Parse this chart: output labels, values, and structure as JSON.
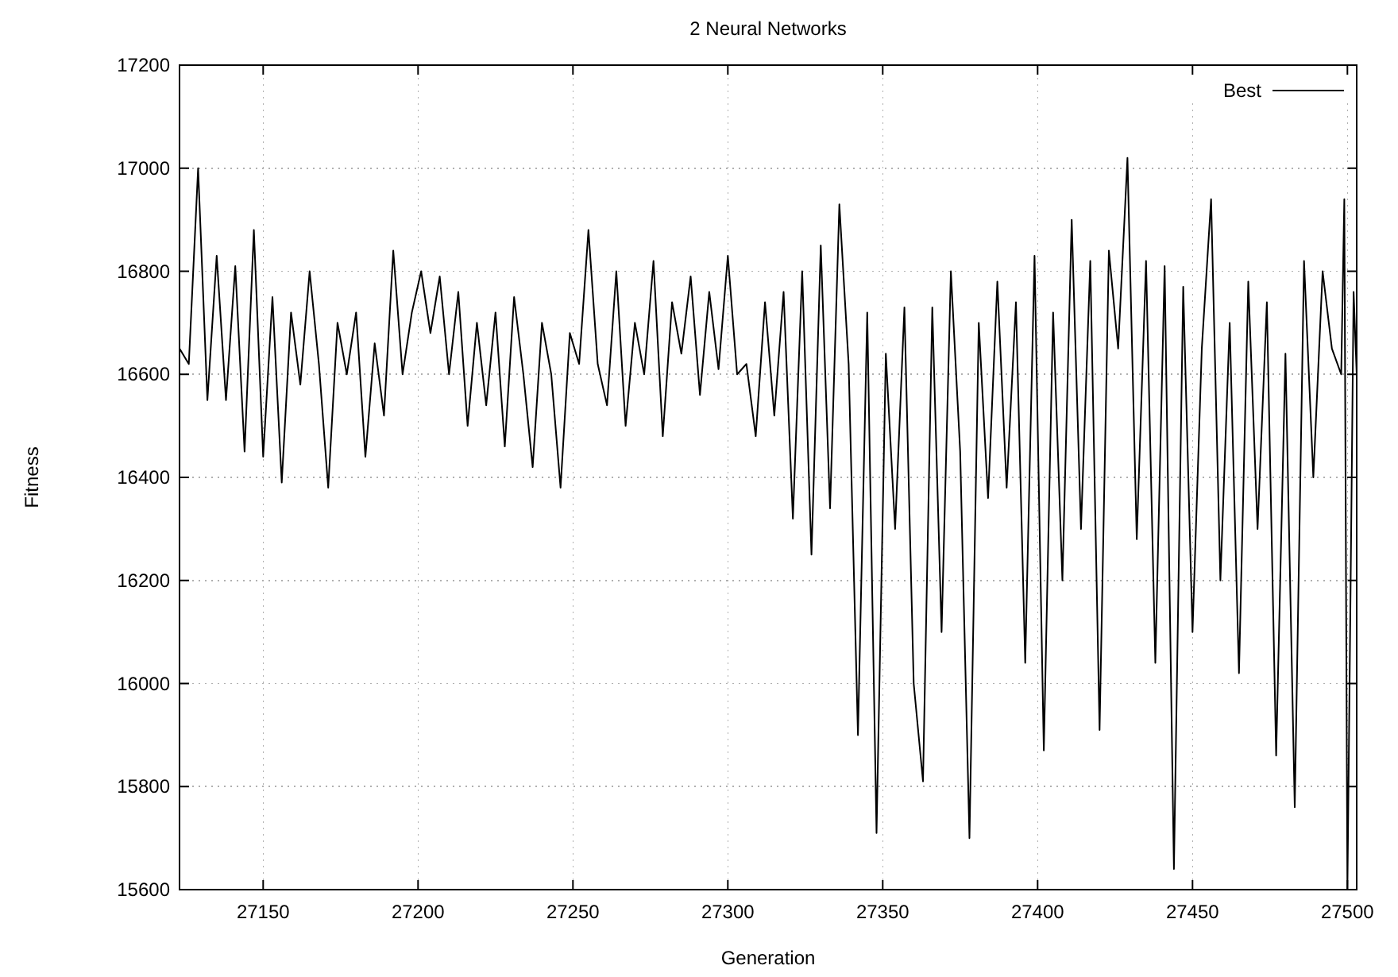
{
  "chart_data": {
    "type": "line",
    "title": "2 Neural Networks",
    "xlabel": "Generation",
    "ylabel": "Fitness",
    "xlim": [
      27123,
      27503
    ],
    "xticks": [
      27150,
      27200,
      27250,
      27300,
      27350,
      27400,
      27450,
      27500
    ],
    "ylim": [
      15600,
      17200
    ],
    "yticks": [
      15600,
      15800,
      16000,
      16200,
      16400,
      16600,
      16800,
      17000,
      17200
    ],
    "grid": true,
    "legend": "top right",
    "marker": "none",
    "line_style": "solid",
    "x": [
      27123,
      27126,
      27129,
      27132,
      27135,
      27138,
      27141,
      27144,
      27147,
      27150,
      27153,
      27156,
      27159,
      27162,
      27165,
      27168,
      27171,
      27174,
      27177,
      27180,
      27183,
      27186,
      27189,
      27192,
      27195,
      27198,
      27201,
      27204,
      27207,
      27210,
      27213,
      27216,
      27219,
      27222,
      27225,
      27228,
      27231,
      27234,
      27237,
      27240,
      27243,
      27246,
      27249,
      27252,
      27255,
      27258,
      27261,
      27264,
      27267,
      27270,
      27273,
      27276,
      27279,
      27282,
      27285,
      27288,
      27291,
      27294,
      27297,
      27300,
      27303,
      27306,
      27309,
      27312,
      27315,
      27318,
      27321,
      27324,
      27327,
      27330,
      27333,
      27336,
      27339,
      27342,
      27345,
      27348,
      27351,
      27354,
      27357,
      27360,
      27363,
      27366,
      27369,
      27372,
      27375,
      27378,
      27381,
      27384,
      27387,
      27390,
      27393,
      27396,
      27399,
      27402,
      27405,
      27408,
      27411,
      27414,
      27417,
      27420,
      27423,
      27426,
      27429,
      27432,
      27435,
      27438,
      27441,
      27444,
      27447,
      27450,
      27453,
      27456,
      27459,
      27462,
      27465,
      27468,
      27471,
      27474,
      27477,
      27480,
      27483,
      27486,
      27489,
      27492,
      27495,
      27498,
      27499,
      27500,
      27501,
      27502,
      27503
    ],
    "series": [
      {
        "name": "Best",
        "color": "#000000",
        "values": [
          16650,
          16620,
          17000,
          16550,
          16830,
          16550,
          16810,
          16450,
          16880,
          16440,
          16750,
          16390,
          16720,
          16580,
          16800,
          16620,
          16380,
          16700,
          16600,
          16720,
          16440,
          16660,
          16520,
          16840,
          16600,
          16720,
          16800,
          16680,
          16790,
          16600,
          16760,
          16500,
          16700,
          16540,
          16720,
          16460,
          16750,
          16600,
          16420,
          16700,
          16600,
          16380,
          16680,
          16620,
          16880,
          16620,
          16540,
          16800,
          16500,
          16700,
          16600,
          16820,
          16480,
          16740,
          16640,
          16790,
          16560,
          16760,
          16610,
          16830,
          16600,
          16620,
          16480,
          16740,
          16520,
          16760,
          16320,
          16800,
          16250,
          16850,
          16340,
          16930,
          16620,
          15900,
          16720,
          15710,
          16640,
          16300,
          16730,
          16000,
          15810,
          16730,
          16100,
          16800,
          16450,
          15700,
          16700,
          16360,
          16780,
          16380,
          16740,
          16040,
          16830,
          15870,
          16720,
          16200,
          16900,
          16300,
          16820,
          15910,
          16840,
          16650,
          17020,
          16280,
          16820,
          16040,
          16810,
          15640,
          16770,
          16100,
          16650,
          16940,
          16200,
          16700,
          16020,
          16780,
          16300,
          16740,
          15860,
          16640,
          15760,
          16820,
          16400,
          16800,
          16650,
          16600,
          16940,
          15600,
          16170,
          16760,
          16600
        ]
      }
    ]
  }
}
